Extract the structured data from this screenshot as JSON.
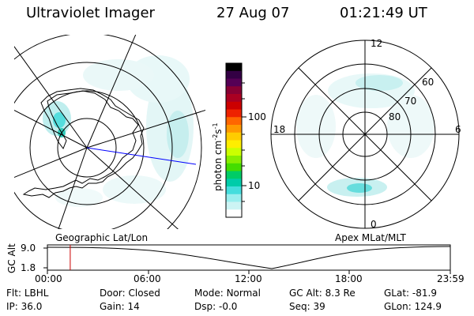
{
  "header": {
    "title": "Ultraviolet Imager",
    "date": "27 Aug 07",
    "time": "01:21:49 UT"
  },
  "colorbar": {
    "label": "photon cm",
    "label_exp1": "-2",
    "label_mid": "s",
    "label_exp2": "-1",
    "ticks": [
      "100",
      "10"
    ],
    "colors": [
      "#000000",
      "#330044",
      "#550055",
      "#880033",
      "#aa0022",
      "#cc0000",
      "#ee2200",
      "#ff6600",
      "#ff9900",
      "#ffcc00",
      "#ffee00",
      "#ccff00",
      "#88ee00",
      "#44dd00",
      "#00cc66",
      "#00ccaa",
      "#44dddd",
      "#99eeee",
      "#ccf4f4",
      "#ffffff"
    ]
  },
  "left_panel": {
    "label": "Geographic Lat/Lon"
  },
  "right_panel": {
    "label": "Apex  MLat/MLT",
    "lat_labels": [
      "60",
      "70",
      "80"
    ],
    "mlt_labels": [
      "12",
      "18",
      "6",
      "0"
    ]
  },
  "altitude_plot": {
    "axis_label": "GC Alt",
    "y_ticks": [
      "9.0",
      "1.8"
    ],
    "x_ticks": [
      "00:00",
      "06:00",
      "12:00",
      "18:00",
      "23:59"
    ],
    "marker_time_hours": 1.36
  },
  "footer": {
    "filt_label": "Flt:",
    "filt_value": "LBHL",
    "ip_label": "IP:",
    "ip_value": "36.0",
    "door_label": "Door:",
    "door_value": "Closed",
    "gain_label": "Gain:",
    "gain_value": "14",
    "mode_label": "Mode:",
    "mode_value": "Normal",
    "dsp_label": "Dsp:",
    "dsp_value": "-0.0",
    "gcalt_label": "GC Alt:",
    "gcalt_value": "8.3 Re",
    "seq_label": "Seq:",
    "seq_value": "39",
    "glat_label": "GLat:",
    "glat_value": "-81.9",
    "glon_label": "GLon:",
    "glon_value": "124.9"
  },
  "colors": {
    "aurora_light": "#bfeeee",
    "aurora_mid": "#55dddd",
    "aurora_strong": "#22ccbb",
    "sun_line": "#0000ff",
    "marker": "#cc0000"
  }
}
